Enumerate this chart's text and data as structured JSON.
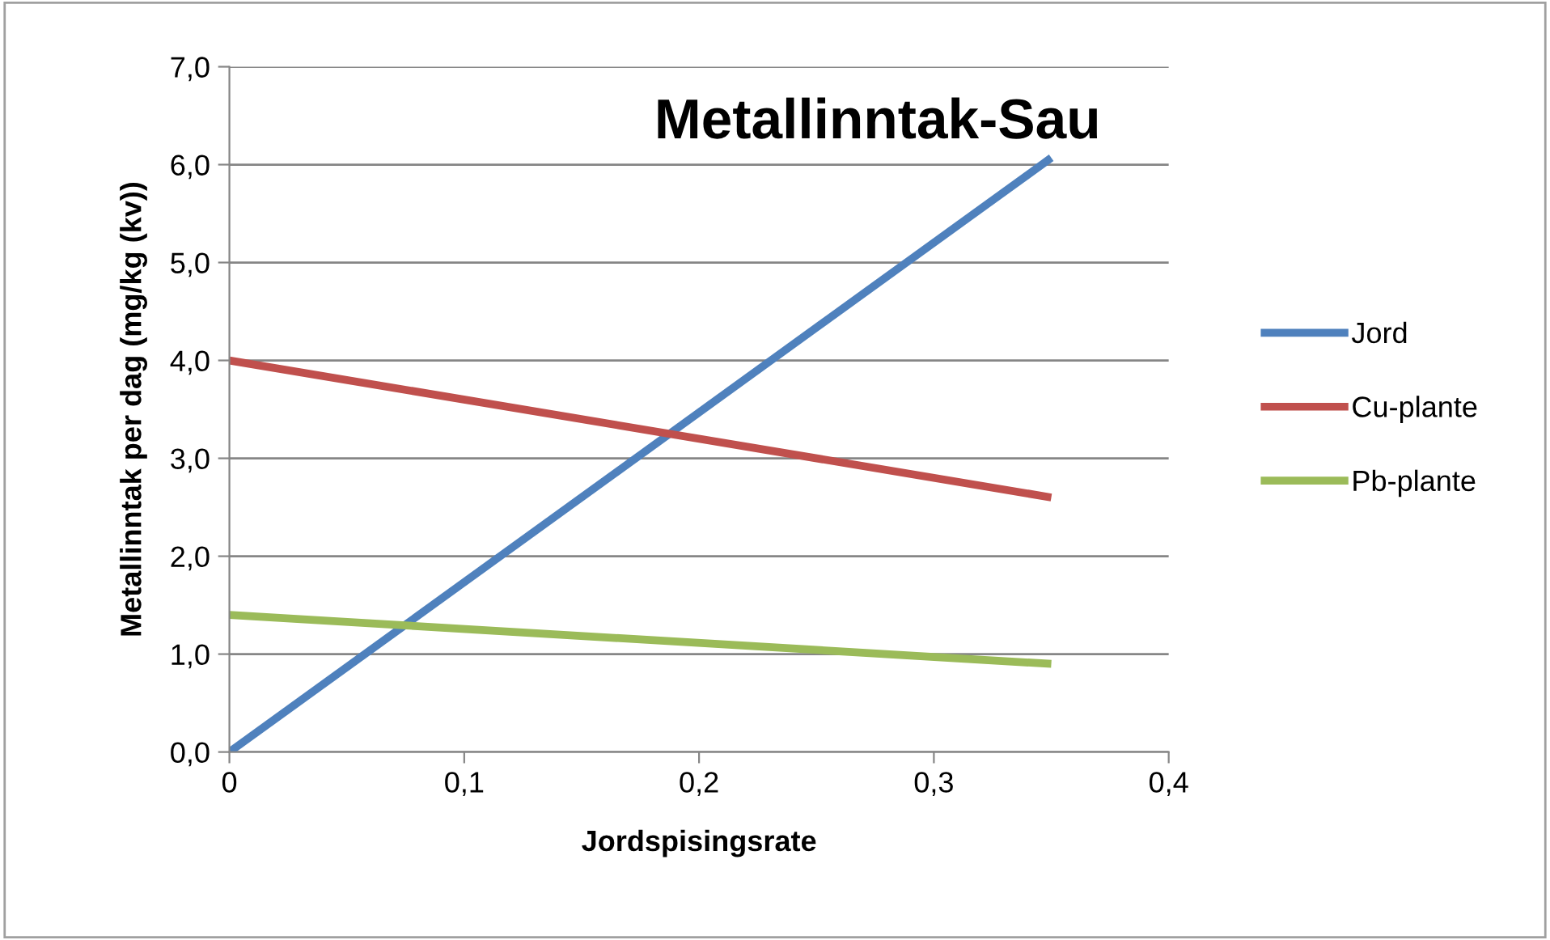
{
  "chart_data": {
    "type": "line",
    "title": "Metallinntak-Sau",
    "xlabel": "Jordspisingsrate",
    "ylabel": "Metallinntak per dag (mg/kg (kv))",
    "x": [
      0,
      0.35
    ],
    "series": [
      {
        "name": "Jord",
        "color": "#4f81bd",
        "values": [
          0,
          6.07
        ]
      },
      {
        "name": "Cu-plante",
        "color": "#c0504d",
        "values": [
          4.0,
          2.6
        ]
      },
      {
        "name": "Pb-plante",
        "color": "#9bbb59",
        "values": [
          1.4,
          0.9
        ]
      }
    ],
    "xlim": [
      0,
      0.4
    ],
    "xticks": [
      0,
      {
        "value": 0.1,
        "label": "0,1"
      },
      {
        "value": 0.2,
        "label": "0,2"
      },
      {
        "value": 0.3,
        "label": "0,3"
      },
      {
        "value": 0.4,
        "label": "0,4"
      }
    ],
    "ylim": [
      0,
      7
    ],
    "yticks": [
      {
        "value": 0,
        "label": "0,0"
      },
      {
        "value": 1,
        "label": "1,0"
      },
      {
        "value": 2,
        "label": "2,0"
      },
      {
        "value": 3,
        "label": "3,0"
      },
      {
        "value": 4,
        "label": "4,0"
      },
      {
        "value": 5,
        "label": "5,0"
      },
      {
        "value": 6,
        "label": "6,0"
      },
      {
        "value": 7,
        "label": "7,0"
      }
    ],
    "grid": "y",
    "legend": "right",
    "marker": "none",
    "line_style": "solid"
  }
}
